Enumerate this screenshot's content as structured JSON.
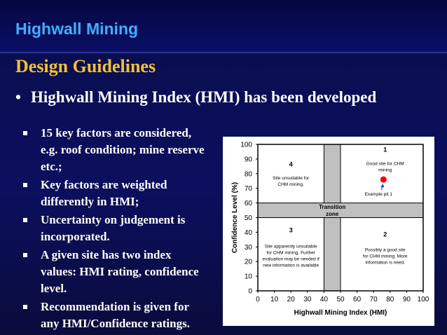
{
  "header": {
    "app_title": "Highwall Mining"
  },
  "section_title": "Design Guidelines",
  "main_bullet": {
    "marker": "•",
    "text": "Highwall Mining Index (HMI) has been developed"
  },
  "sub_bullets": [
    {
      "lines": [
        "15 key factors are considered,",
        "e.g. roof condition; mine reserve",
        "etc.;"
      ]
    },
    {
      "lines": [
        "Key factors are weighted",
        "differently in HMI;"
      ]
    },
    {
      "lines": [
        "Uncertainty on judgement is",
        "incorporated."
      ]
    },
    {
      "lines": [
        "A given site has two index",
        "values: HMI rating, confidence",
        "level."
      ]
    },
    {
      "lines": [
        "Recommendation is given for",
        "any HMI/Confidence ratings."
      ]
    }
  ],
  "colors": {
    "title_blue": "#3fb0ff",
    "heading_gold": "#f1c232",
    "zone_gray": "#c0c0c0",
    "point_red": "#ff0000",
    "arrow_blue": "#1f3fbf"
  },
  "chart_data": {
    "type": "scatter",
    "xlabel": "Highwall Mining Index (HMI)",
    "ylabel": "Confidence Level (%)",
    "xlim": [
      0,
      100
    ],
    "ylim": [
      0,
      100
    ],
    "x_ticks": [
      "0",
      "10",
      "20",
      "30",
      "40",
      "50",
      "60",
      "70",
      "80",
      "90",
      "100"
    ],
    "y_ticks": [
      "0",
      "10",
      "20",
      "30",
      "40",
      "50",
      "60",
      "70",
      "80",
      "90",
      "100"
    ],
    "grid": false,
    "transition_zone": {
      "x_range": [
        40,
        50
      ],
      "y_range": [
        50,
        60
      ],
      "label": [
        "Transition",
        "zone"
      ]
    },
    "quadrants": [
      {
        "number": "4",
        "text": [
          "Site unsuitable for",
          "CHM mining."
        ]
      },
      {
        "number": "1",
        "text": [
          "Good site for CHM",
          "mining"
        ]
      },
      {
        "number": "3",
        "text": [
          "Site apparently unsuitable",
          "for CHM mining. Further",
          "evaluation may be needed if",
          "new information is available"
        ]
      },
      {
        "number": "2",
        "text": [
          "Possibly a good site",
          "for CHM mining. More",
          "information is need."
        ]
      }
    ],
    "points": [
      {
        "x": 76,
        "y": 76,
        "label": "Example pit 1"
      }
    ]
  }
}
